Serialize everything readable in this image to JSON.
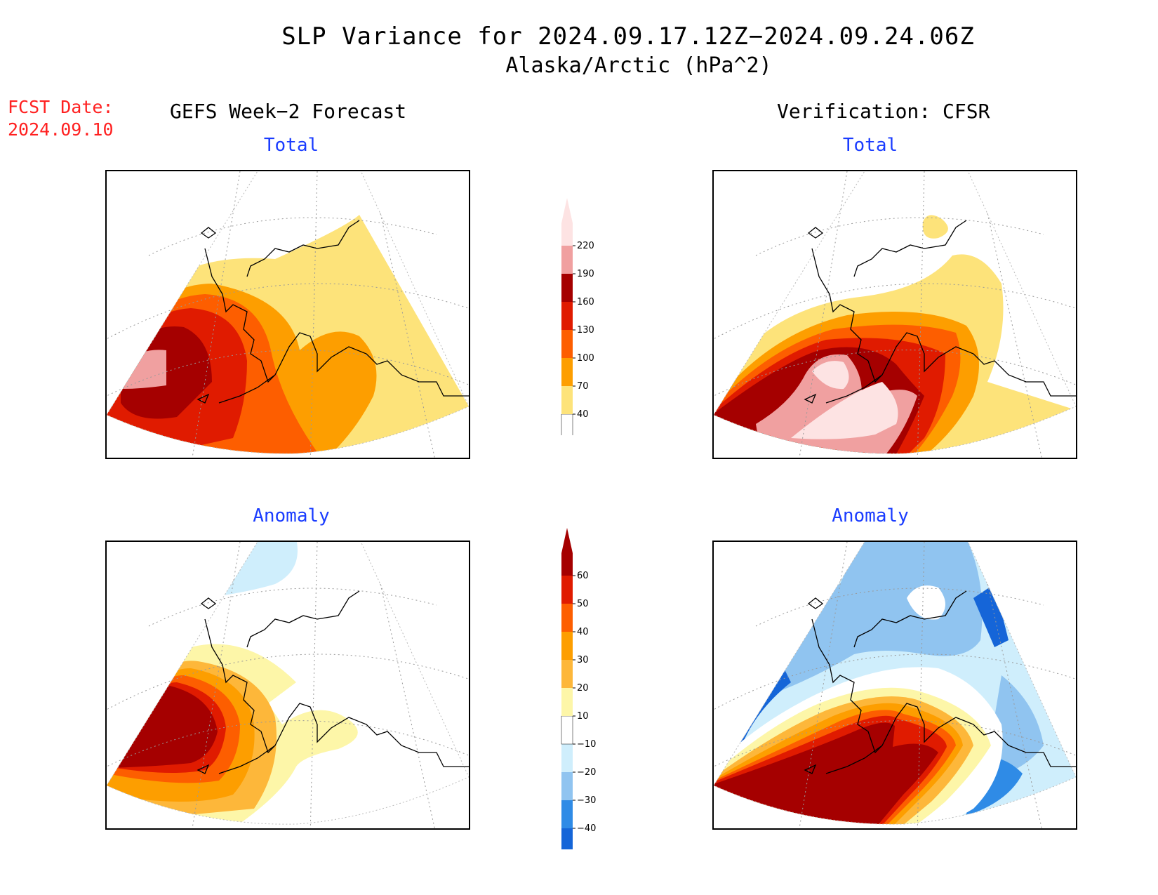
{
  "title": "SLP Variance for 2024.09.17.12Z−2024.09.24.06Z",
  "subtitle": "Alaska/Arctic (hPa^2)",
  "forecast_date": {
    "label": "FCST Date:",
    "value": "2024.09.10"
  },
  "columns": {
    "left": "GEFS Week−2 Forecast",
    "right": "Verification: CFSR"
  },
  "panels": {
    "total_label": "Total",
    "anomaly_label": "Anomaly"
  },
  "colors": {
    "title_text": "#000000",
    "fcst_date_text": "#ff2020",
    "panel_title_text": "#1a3cff"
  },
  "chart_data": [
    {
      "type": "heatmap",
      "name": "total-colorbar",
      "levels": [
        40,
        70,
        100,
        130,
        160,
        190,
        220
      ],
      "colors": [
        "#ffffff",
        "#fde37a",
        "#fd9e00",
        "#fd5e00",
        "#e01b00",
        "#a50000",
        "#f0a0a0",
        "#fde3e3"
      ],
      "tick_labels": [
        "40",
        "70",
        "100",
        "130",
        "160",
        "190",
        "220"
      ]
    },
    {
      "type": "heatmap",
      "name": "anomaly-colorbar",
      "levels": [
        -40,
        -30,
        -20,
        -10,
        10,
        20,
        30,
        40,
        50,
        60
      ],
      "colors": [
        "#1565d8",
        "#2f8be6",
        "#90c4f0",
        "#cfeefc",
        "#ffffff",
        "#fdf6a8",
        "#fdb73a",
        "#fd9e00",
        "#fd5e00",
        "#e01b00",
        "#a50000"
      ],
      "tick_labels": [
        "−40",
        "−30",
        "−20",
        "−10",
        "10",
        "20",
        "30",
        "40",
        "50",
        "60"
      ]
    }
  ]
}
